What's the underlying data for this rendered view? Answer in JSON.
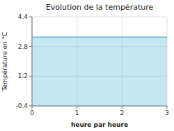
{
  "chart_data": {
    "type": "area",
    "title": "Evolution de la température",
    "x_label": "heure par heure",
    "y_label": "Température en °C",
    "x": [
      0,
      3
    ],
    "series": [
      {
        "values": [
          3.3,
          3.3
        ],
        "color": "#5BB8D4"
      }
    ],
    "xlim": [
      0,
      3
    ],
    "xticks": [
      0,
      1,
      2,
      3
    ],
    "ylim": [
      -0.4,
      4.4
    ],
    "yticks": [
      -0.4,
      1.2,
      2.8,
      4.4
    ],
    "grid": true
  }
}
